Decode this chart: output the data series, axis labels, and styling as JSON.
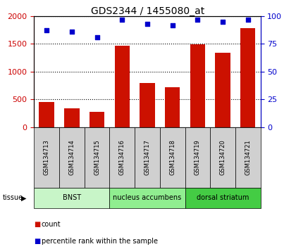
{
  "title": "GDS2344 / 1455080_at",
  "samples": [
    "GSM134713",
    "GSM134714",
    "GSM134715",
    "GSM134716",
    "GSM134717",
    "GSM134718",
    "GSM134719",
    "GSM134720",
    "GSM134721"
  ],
  "counts": [
    450,
    340,
    270,
    1470,
    790,
    720,
    1490,
    1340,
    1790
  ],
  "percentiles": [
    87,
    86,
    81,
    97,
    93,
    92,
    97,
    95,
    97
  ],
  "tissues": [
    {
      "label": "BNST",
      "start": 0,
      "end": 3,
      "color": "#c8f5c8"
    },
    {
      "label": "nucleus accumbens",
      "start": 3,
      "end": 6,
      "color": "#90ee90"
    },
    {
      "label": "dorsal striatum",
      "start": 6,
      "end": 9,
      "color": "#44cc44"
    }
  ],
  "bar_color": "#cc1100",
  "dot_color": "#0000cc",
  "ylim_left": [
    0,
    2000
  ],
  "ylim_right": [
    0,
    100
  ],
  "yticks_left": [
    0,
    500,
    1000,
    1500,
    2000
  ],
  "yticks_right": [
    0,
    25,
    50,
    75,
    100
  ],
  "tick_label_color_left": "#cc0000",
  "tick_label_color_right": "#0000cc",
  "legend_count_label": "count",
  "legend_pct_label": "percentile rank within the sample",
  "sample_box_color": "#d0d0d0",
  "title_fontsize": 10,
  "axis_fontsize": 8,
  "label_fontsize": 7
}
